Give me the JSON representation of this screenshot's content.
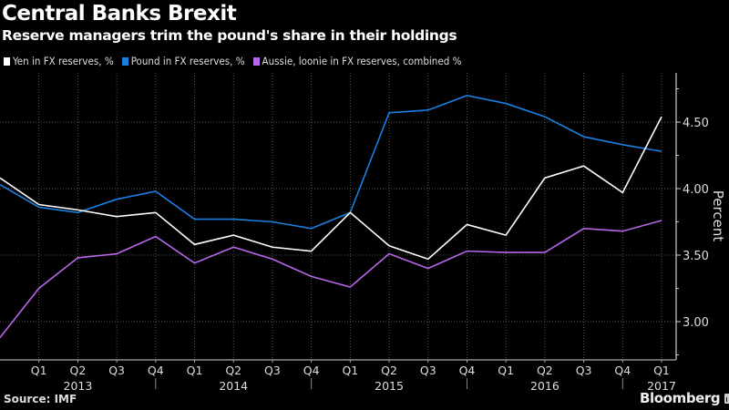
{
  "header": {
    "title": "Central Banks Brexit",
    "subtitle": "Reserve managers trim the pound's share in their holdings"
  },
  "footer": {
    "source": "Source: IMF",
    "brand": "Bloomberg"
  },
  "chart_data": {
    "type": "line",
    "title": "Central Banks Brexit",
    "subtitle": "Reserve managers trim the pound's share in their holdings",
    "xlabel": "",
    "ylabel": "Percent",
    "ylim": [
      2.75,
      4.9
    ],
    "yticks": [
      3.0,
      3.5,
      4.0,
      4.5
    ],
    "ytick_labels": [
      "3.00",
      "3.50",
      "4.00",
      "4.50"
    ],
    "grid": true,
    "legend_position": "top-left",
    "x": [
      "Q4 2012",
      "Q1 2013",
      "Q2 2013",
      "Q3 2013",
      "Q4 2013",
      "Q1 2014",
      "Q2 2014",
      "Q3 2014",
      "Q4 2014",
      "Q1 2015",
      "Q2 2015",
      "Q3 2015",
      "Q4 2015",
      "Q1 2016",
      "Q2 2016",
      "Q3 2016",
      "Q4 2016",
      "Q1 2017"
    ],
    "x_tick_labels": [
      "",
      "Q1",
      "Q2",
      "Q3",
      "Q4",
      "Q1",
      "Q2",
      "Q3",
      "Q4",
      "Q1",
      "Q2",
      "Q3",
      "Q4",
      "Q1",
      "Q2",
      "Q3",
      "Q4",
      "Q1"
    ],
    "year_labels": [
      {
        "label": "2013",
        "center_index": 2
      },
      {
        "label": "2014",
        "center_index": 6
      },
      {
        "label": "2015",
        "center_index": 10
      },
      {
        "label": "2016",
        "center_index": 14
      },
      {
        "label": "2017",
        "center_index": 17
      }
    ],
    "year_separators_after_index": [
      4,
      8,
      12,
      16
    ],
    "series": [
      {
        "name": "Yen in FX reserves, %",
        "color": "#ffffff",
        "values": [
          4.08,
          3.88,
          3.84,
          3.79,
          3.82,
          3.58,
          3.65,
          3.56,
          3.53,
          3.82,
          3.57,
          3.47,
          3.73,
          3.65,
          4.08,
          4.17,
          3.97,
          4.54
        ]
      },
      {
        "name": "Pound in FX reserves, %",
        "color": "#1a7fe0",
        "values": [
          4.03,
          3.86,
          3.82,
          3.92,
          3.98,
          3.77,
          3.77,
          3.75,
          3.7,
          3.82,
          4.57,
          4.59,
          4.7,
          4.64,
          4.54,
          4.39,
          4.33,
          4.28
        ]
      },
      {
        "name": "Aussie, loonie in FX reserves, combined %",
        "color": "#b866e8",
        "values": [
          2.88,
          3.25,
          3.48,
          3.51,
          3.64,
          3.44,
          3.56,
          3.47,
          3.34,
          3.26,
          3.51,
          3.4,
          3.53,
          3.52,
          3.52,
          3.7,
          3.68,
          3.76
        ]
      }
    ]
  }
}
